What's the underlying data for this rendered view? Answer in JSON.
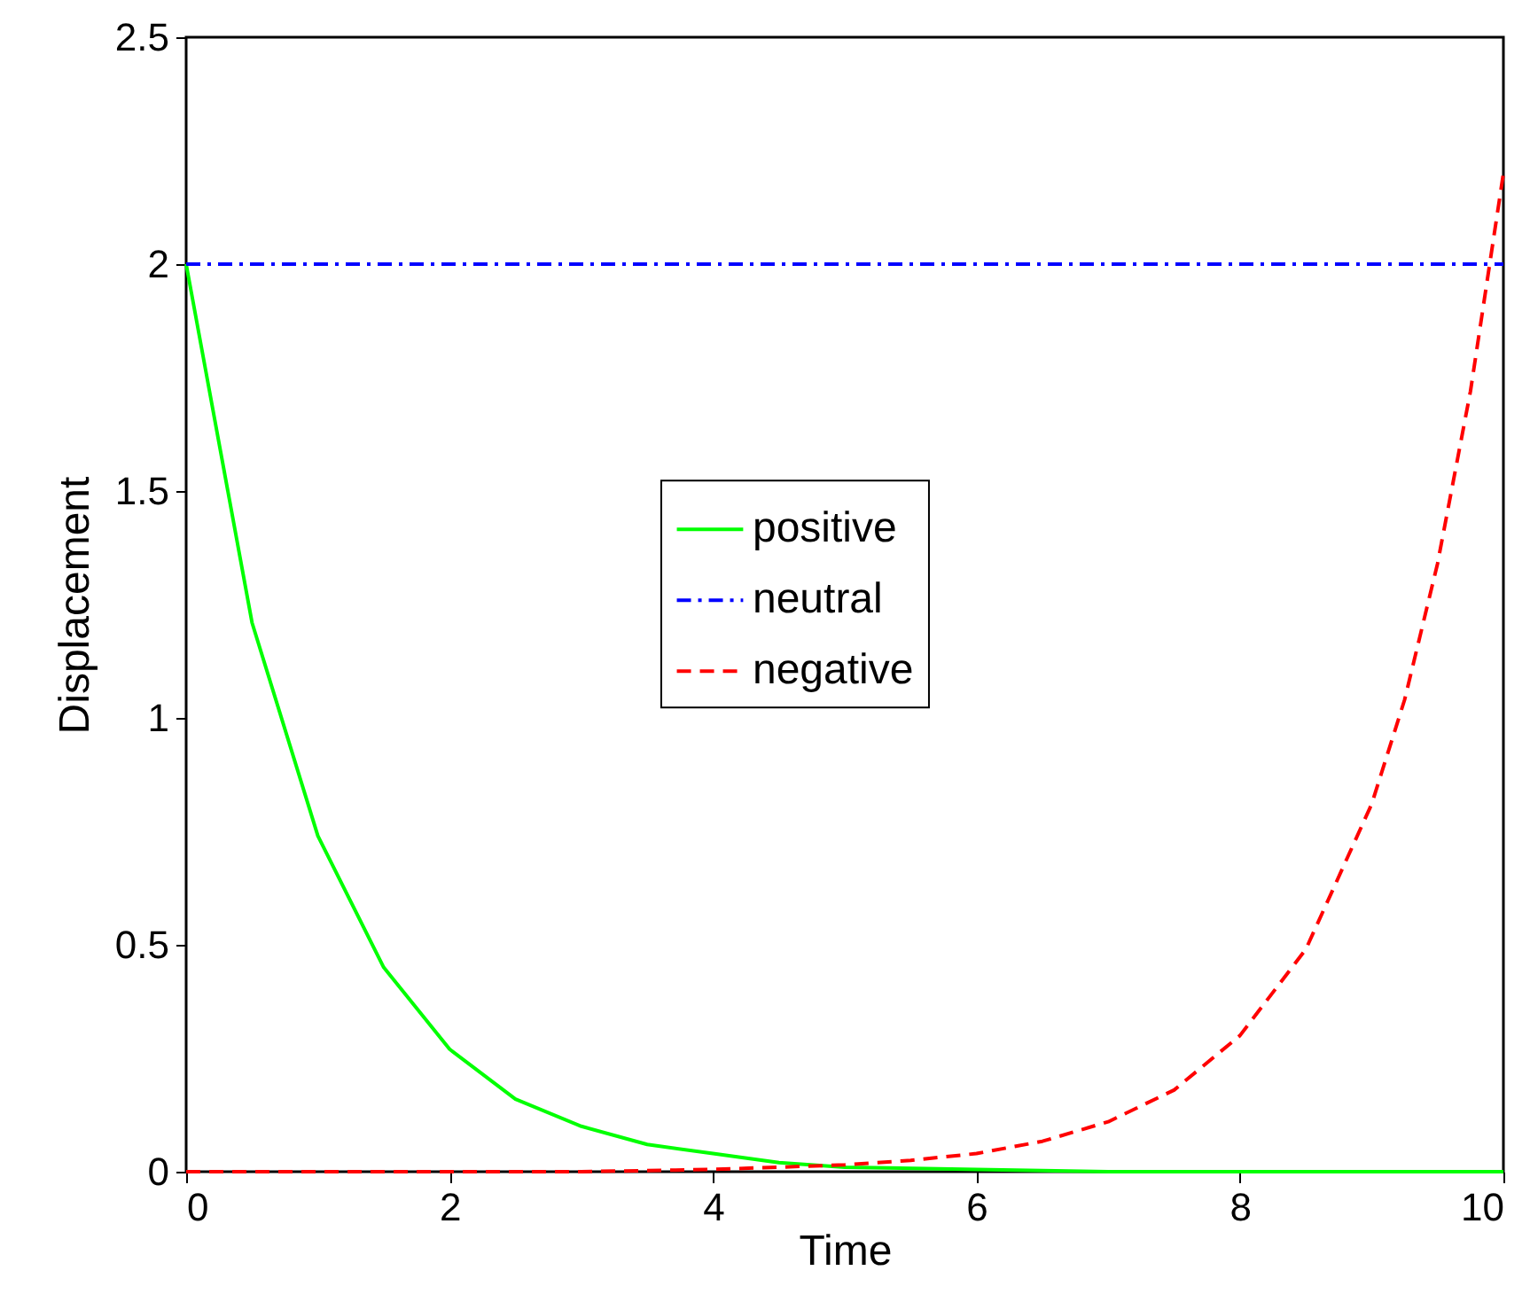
{
  "chart_data": {
    "type": "line",
    "xlabel": "Time",
    "ylabel": "Displacement",
    "series": [
      {
        "name": "positive",
        "color": "#00ff00",
        "line_style": "solid",
        "x": [
          0,
          0.5,
          1,
          1.5,
          2,
          2.5,
          3,
          3.5,
          4,
          4.5,
          5,
          6,
          7,
          8,
          9,
          10
        ],
        "values": [
          2,
          1.21,
          0.74,
          0.45,
          0.27,
          0.16,
          0.1,
          0.06,
          0.04,
          0.02,
          0.01,
          0.005,
          0,
          0,
          0,
          0
        ]
      },
      {
        "name": "neutral",
        "color": "#0000ff",
        "line_style": "dashdot",
        "x": [
          0,
          10
        ],
        "values": [
          2,
          2
        ]
      },
      {
        "name": "negative",
        "color": "#ff0000",
        "line_style": "dashed",
        "x": [
          0,
          1,
          2,
          3,
          4,
          5,
          5.5,
          6,
          6.5,
          7,
          7.5,
          8,
          8.5,
          9,
          9.25,
          9.5,
          9.75,
          10
        ],
        "values": [
          0,
          0,
          0,
          0,
          0.005,
          0.015,
          0.025,
          0.04,
          0.067,
          0.11,
          0.18,
          0.3,
          0.49,
          0.81,
          1.04,
          1.34,
          1.72,
          2.2
        ]
      }
    ],
    "xlim": [
      0,
      10
    ],
    "xticks": [
      0,
      2,
      4,
      6,
      8,
      10
    ],
    "ylim": [
      0,
      2.5
    ],
    "yticks": [
      0,
      0.5,
      1,
      1.5,
      2,
      2.5
    ],
    "grid": false,
    "legend": "center",
    "marker": "none"
  }
}
